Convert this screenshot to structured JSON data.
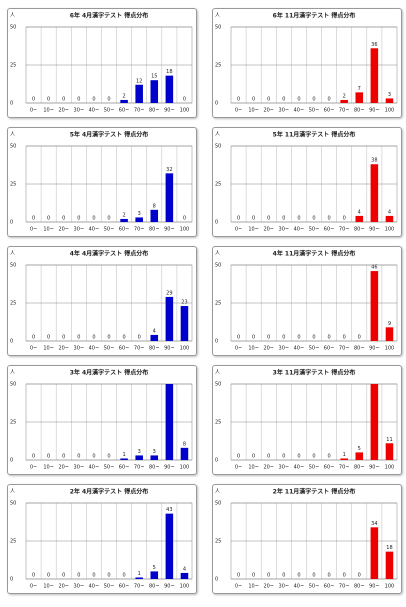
{
  "chart_data": [
    {
      "type": "bar",
      "title": "6年 4月漢字テスト 得点分布",
      "y_label": "人",
      "categories": [
        "0~",
        "10~",
        "20~",
        "30~",
        "40~",
        "50~",
        "60~",
        "70~",
        "80~",
        "90~",
        "100"
      ],
      "values": [
        0,
        0,
        0,
        0,
        0,
        0,
        2,
        12,
        15,
        18,
        0
      ],
      "color": "#0000cc",
      "ylim": [
        0,
        50
      ],
      "yticks": [
        0,
        25,
        50
      ],
      "grid": true
    },
    {
      "type": "bar",
      "title": "6年 11月漢字テスト 得点分布",
      "y_label": "人",
      "categories": [
        "0~",
        "10~",
        "20~",
        "30~",
        "40~",
        "50~",
        "60~",
        "70~",
        "80~",
        "90~",
        "100"
      ],
      "values": [
        0,
        0,
        0,
        0,
        0,
        0,
        0,
        2,
        7,
        36,
        3
      ],
      "color": "#ee0000",
      "ylim": [
        0,
        50
      ],
      "yticks": [
        0,
        25,
        50
      ],
      "grid": true
    },
    {
      "type": "bar",
      "title": "5年 4月漢字テスト 得点分布",
      "y_label": "人",
      "categories": [
        "0~",
        "10~",
        "20~",
        "30~",
        "40~",
        "50~",
        "60~",
        "70~",
        "80~",
        "90~",
        "100"
      ],
      "values": [
        0,
        0,
        0,
        0,
        0,
        0,
        2,
        3,
        8,
        32,
        0
      ],
      "color": "#0000cc",
      "ylim": [
        0,
        50
      ],
      "yticks": [
        0,
        25,
        50
      ],
      "grid": true
    },
    {
      "type": "bar",
      "title": "5年 11月漢字テスト 得点分布",
      "y_label": "人",
      "categories": [
        "0~",
        "10~",
        "20~",
        "30~",
        "40~",
        "50~",
        "60~",
        "70~",
        "80~",
        "90~",
        "100"
      ],
      "values": [
        0,
        0,
        0,
        0,
        0,
        0,
        0,
        0,
        4,
        38,
        4
      ],
      "color": "#ee0000",
      "ylim": [
        0,
        50
      ],
      "yticks": [
        0,
        25,
        50
      ],
      "grid": true
    },
    {
      "type": "bar",
      "title": "4年 4月漢字テスト 得点分布",
      "y_label": "人",
      "categories": [
        "0~",
        "10~",
        "20~",
        "30~",
        "40~",
        "50~",
        "60~",
        "70~",
        "80~",
        "90~",
        "100"
      ],
      "values": [
        0,
        0,
        0,
        0,
        0,
        0,
        0,
        0,
        4,
        29,
        23
      ],
      "color": "#0000cc",
      "ylim": [
        0,
        50
      ],
      "yticks": [
        0,
        25,
        50
      ],
      "grid": true
    },
    {
      "type": "bar",
      "title": "4年 11月漢字テスト 得点分布",
      "y_label": "人",
      "categories": [
        "0~",
        "10~",
        "20~",
        "30~",
        "40~",
        "50~",
        "60~",
        "70~",
        "80~",
        "90~",
        "100"
      ],
      "values": [
        0,
        0,
        0,
        0,
        0,
        0,
        0,
        0,
        0,
        46,
        9
      ],
      "color": "#ee0000",
      "ylim": [
        0,
        50
      ],
      "yticks": [
        0,
        25,
        50
      ],
      "grid": true
    },
    {
      "type": "bar",
      "title": "3年 4月漢字テスト 得点分布",
      "y_label": "人",
      "categories": [
        "0~",
        "10~",
        "20~",
        "30~",
        "40~",
        "50~",
        "60~",
        "70~",
        "80~",
        "90~",
        "100"
      ],
      "values": [
        0,
        0,
        0,
        0,
        0,
        0,
        1,
        3,
        3,
        50,
        8
      ],
      "color": "#0000cc",
      "ylim": [
        0,
        50
      ],
      "yticks": [
        0,
        25,
        50
      ],
      "grid": true
    },
    {
      "type": "bar",
      "title": "3年 11月漢字テスト 得点分布",
      "y_label": "人",
      "categories": [
        "0~",
        "10~",
        "20~",
        "30~",
        "40~",
        "50~",
        "60~",
        "70~",
        "80~",
        "90~",
        "100"
      ],
      "values": [
        0,
        0,
        0,
        0,
        0,
        0,
        0,
        1,
        5,
        50,
        11
      ],
      "color": "#ee0000",
      "ylim": [
        0,
        50
      ],
      "yticks": [
        0,
        25,
        50
      ],
      "grid": true
    },
    {
      "type": "bar",
      "title": "2年 4月漢字テスト 得点分布",
      "y_label": "人",
      "categories": [
        "0~",
        "10~",
        "20~",
        "30~",
        "40~",
        "50~",
        "60~",
        "70~",
        "80~",
        "90~",
        "100"
      ],
      "values": [
        0,
        0,
        0,
        0,
        0,
        0,
        0,
        1,
        5,
        43,
        4
      ],
      "color": "#0000cc",
      "ylim": [
        0,
        50
      ],
      "yticks": [
        0,
        25,
        50
      ],
      "grid": true
    },
    {
      "type": "bar",
      "title": "2年 11月漢字テスト 得点分布",
      "y_label": "人",
      "categories": [
        "0~",
        "10~",
        "20~",
        "30~",
        "40~",
        "50~",
        "60~",
        "70~",
        "80~",
        "90~",
        "100"
      ],
      "values": [
        0,
        0,
        0,
        0,
        0,
        0,
        0,
        0,
        0,
        34,
        18
      ],
      "color": "#ee0000",
      "ylim": [
        0,
        50
      ],
      "yticks": [
        0,
        25,
        50
      ],
      "grid": true
    }
  ]
}
